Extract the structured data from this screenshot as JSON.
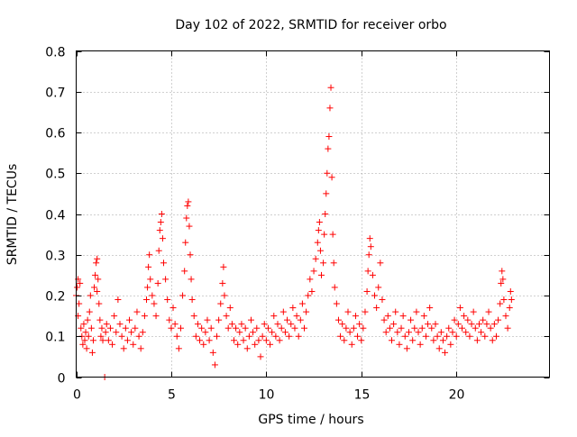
{
  "chart_data": {
    "type": "scatter",
    "title": "Day 102 of 2022, SRMTID for receiver orbo",
    "xlabel": "GPS time / hours",
    "ylabel": "SRMTID / TECUs",
    "xlim": [
      0,
      24.9
    ],
    "ylim": [
      0,
      0.8
    ],
    "x_ticks": [
      0,
      5,
      10,
      15,
      20
    ],
    "x_tick_labels": [
      "0",
      "5",
      "10",
      "15",
      "20"
    ],
    "y_ticks": [
      0,
      0.1,
      0.2,
      0.3,
      0.4,
      0.5,
      0.6,
      0.7,
      0.8
    ],
    "y_tick_labels": [
      "0",
      "0.1",
      "0.2",
      "0.3",
      "0.4",
      "0.5",
      "0.6",
      "0.7",
      "0.8"
    ],
    "grid": true,
    "marker": "+",
    "color": "#ff0000",
    "series": [
      {
        "name": "SRMTID",
        "points": [
          [
            0.0,
            0.2
          ],
          [
            0.05,
            0.22
          ],
          [
            0.1,
            0.24
          ],
          [
            0.1,
            0.15
          ],
          [
            0.15,
            0.18
          ],
          [
            0.2,
            0.23
          ],
          [
            0.25,
            0.12
          ],
          [
            0.3,
            0.1
          ],
          [
            0.35,
            0.08
          ],
          [
            0.4,
            0.13
          ],
          [
            0.45,
            0.09
          ],
          [
            0.5,
            0.11
          ],
          [
            0.55,
            0.07
          ],
          [
            0.6,
            0.14
          ],
          [
            0.65,
            0.1
          ],
          [
            0.7,
            0.16
          ],
          [
            0.75,
            0.2
          ],
          [
            0.8,
            0.12
          ],
          [
            0.85,
            0.06
          ],
          [
            0.9,
            0.09
          ],
          [
            0.95,
            0.22
          ],
          [
            1.0,
            0.25
          ],
          [
            1.05,
            0.28
          ],
          [
            1.1,
            0.29
          ],
          [
            1.1,
            0.21
          ],
          [
            1.15,
            0.24
          ],
          [
            1.2,
            0.18
          ],
          [
            1.25,
            0.14
          ],
          [
            1.3,
            0.1
          ],
          [
            1.35,
            0.12
          ],
          [
            1.4,
            0.09
          ],
          [
            1.5,
            0.0
          ],
          [
            1.55,
            0.11
          ],
          [
            1.6,
            0.13
          ],
          [
            1.7,
            0.09
          ],
          [
            1.8,
            0.12
          ],
          [
            1.9,
            0.08
          ],
          [
            2.0,
            0.15
          ],
          [
            2.1,
            0.11
          ],
          [
            2.2,
            0.19
          ],
          [
            2.3,
            0.13
          ],
          [
            2.4,
            0.1
          ],
          [
            2.5,
            0.07
          ],
          [
            2.6,
            0.12
          ],
          [
            2.7,
            0.09
          ],
          [
            2.8,
            0.14
          ],
          [
            2.9,
            0.11
          ],
          [
            3.0,
            0.08
          ],
          [
            3.1,
            0.12
          ],
          [
            3.2,
            0.16
          ],
          [
            3.3,
            0.1
          ],
          [
            3.4,
            0.07
          ],
          [
            3.5,
            0.11
          ],
          [
            3.6,
            0.15
          ],
          [
            3.7,
            0.19
          ],
          [
            3.75,
            0.22
          ],
          [
            3.8,
            0.27
          ],
          [
            3.85,
            0.3
          ],
          [
            3.9,
            0.24
          ],
          [
            4.0,
            0.2
          ],
          [
            4.1,
            0.18
          ],
          [
            4.2,
            0.15
          ],
          [
            4.3,
            0.23
          ],
          [
            4.35,
            0.31
          ],
          [
            4.4,
            0.36
          ],
          [
            4.45,
            0.38
          ],
          [
            4.5,
            0.4
          ],
          [
            4.55,
            0.34
          ],
          [
            4.6,
            0.28
          ],
          [
            4.7,
            0.24
          ],
          [
            4.8,
            0.19
          ],
          [
            4.9,
            0.14
          ],
          [
            5.0,
            0.12
          ],
          [
            5.1,
            0.17
          ],
          [
            5.2,
            0.13
          ],
          [
            5.3,
            0.1
          ],
          [
            5.4,
            0.07
          ],
          [
            5.5,
            0.12
          ],
          [
            5.6,
            0.2
          ],
          [
            5.7,
            0.26
          ],
          [
            5.75,
            0.33
          ],
          [
            5.8,
            0.39
          ],
          [
            5.85,
            0.42
          ],
          [
            5.9,
            0.43
          ],
          [
            5.95,
            0.37
          ],
          [
            6.0,
            0.3
          ],
          [
            6.05,
            0.24
          ],
          [
            6.1,
            0.19
          ],
          [
            6.2,
            0.15
          ],
          [
            6.3,
            0.1
          ],
          [
            6.4,
            0.13
          ],
          [
            6.5,
            0.09
          ],
          [
            6.6,
            0.12
          ],
          [
            6.7,
            0.08
          ],
          [
            6.8,
            0.11
          ],
          [
            6.9,
            0.14
          ],
          [
            7.0,
            0.09
          ],
          [
            7.1,
            0.12
          ],
          [
            7.2,
            0.06
          ],
          [
            7.3,
            0.03
          ],
          [
            7.4,
            0.1
          ],
          [
            7.5,
            0.14
          ],
          [
            7.6,
            0.18
          ],
          [
            7.7,
            0.23
          ],
          [
            7.75,
            0.27
          ],
          [
            7.8,
            0.2
          ],
          [
            7.9,
            0.15
          ],
          [
            8.0,
            0.12
          ],
          [
            8.1,
            0.17
          ],
          [
            8.2,
            0.13
          ],
          [
            8.3,
            0.09
          ],
          [
            8.4,
            0.12
          ],
          [
            8.5,
            0.08
          ],
          [
            8.6,
            0.11
          ],
          [
            8.7,
            0.13
          ],
          [
            8.8,
            0.09
          ],
          [
            8.9,
            0.12
          ],
          [
            9.0,
            0.07
          ],
          [
            9.1,
            0.1
          ],
          [
            9.2,
            0.14
          ],
          [
            9.3,
            0.11
          ],
          [
            9.4,
            0.08
          ],
          [
            9.5,
            0.12
          ],
          [
            9.6,
            0.09
          ],
          [
            9.7,
            0.05
          ],
          [
            9.8,
            0.1
          ],
          [
            9.9,
            0.13
          ],
          [
            10.0,
            0.09
          ],
          [
            10.1,
            0.12
          ],
          [
            10.2,
            0.08
          ],
          [
            10.3,
            0.11
          ],
          [
            10.4,
            0.15
          ],
          [
            10.5,
            0.1
          ],
          [
            10.6,
            0.13
          ],
          [
            10.7,
            0.09
          ],
          [
            10.8,
            0.12
          ],
          [
            10.9,
            0.16
          ],
          [
            11.0,
            0.11
          ],
          [
            11.1,
            0.14
          ],
          [
            11.2,
            0.1
          ],
          [
            11.3,
            0.13
          ],
          [
            11.4,
            0.17
          ],
          [
            11.5,
            0.12
          ],
          [
            11.6,
            0.15
          ],
          [
            11.7,
            0.1
          ],
          [
            11.8,
            0.14
          ],
          [
            11.9,
            0.18
          ],
          [
            12.0,
            0.12
          ],
          [
            12.1,
            0.16
          ],
          [
            12.2,
            0.2
          ],
          [
            12.3,
            0.24
          ],
          [
            12.4,
            0.21
          ],
          [
            12.5,
            0.26
          ],
          [
            12.6,
            0.29
          ],
          [
            12.7,
            0.33
          ],
          [
            12.75,
            0.36
          ],
          [
            12.8,
            0.38
          ],
          [
            12.85,
            0.31
          ],
          [
            12.9,
            0.25
          ],
          [
            13.0,
            0.28
          ],
          [
            13.05,
            0.35
          ],
          [
            13.1,
            0.4
          ],
          [
            13.15,
            0.45
          ],
          [
            13.2,
            0.5
          ],
          [
            13.25,
            0.56
          ],
          [
            13.3,
            0.59
          ],
          [
            13.35,
            0.66
          ],
          [
            13.4,
            0.71
          ],
          [
            13.45,
            0.49
          ],
          [
            13.5,
            0.35
          ],
          [
            13.55,
            0.28
          ],
          [
            13.6,
            0.22
          ],
          [
            13.7,
            0.18
          ],
          [
            13.8,
            0.14
          ],
          [
            13.9,
            0.1
          ],
          [
            14.0,
            0.13
          ],
          [
            14.1,
            0.09
          ],
          [
            14.2,
            0.12
          ],
          [
            14.3,
            0.16
          ],
          [
            14.4,
            0.11
          ],
          [
            14.5,
            0.08
          ],
          [
            14.6,
            0.12
          ],
          [
            14.7,
            0.15
          ],
          [
            14.8,
            0.1
          ],
          [
            14.9,
            0.13
          ],
          [
            15.0,
            0.09
          ],
          [
            15.1,
            0.12
          ],
          [
            15.2,
            0.16
          ],
          [
            15.3,
            0.21
          ],
          [
            15.35,
            0.26
          ],
          [
            15.4,
            0.3
          ],
          [
            15.45,
            0.34
          ],
          [
            15.5,
            0.32
          ],
          [
            15.6,
            0.25
          ],
          [
            15.7,
            0.2
          ],
          [
            15.8,
            0.17
          ],
          [
            15.9,
            0.22
          ],
          [
            16.0,
            0.28
          ],
          [
            16.1,
            0.19
          ],
          [
            16.2,
            0.14
          ],
          [
            16.3,
            0.11
          ],
          [
            16.4,
            0.15
          ],
          [
            16.5,
            0.12
          ],
          [
            16.6,
            0.09
          ],
          [
            16.7,
            0.13
          ],
          [
            16.8,
            0.16
          ],
          [
            16.9,
            0.11
          ],
          [
            17.0,
            0.08
          ],
          [
            17.1,
            0.12
          ],
          [
            17.2,
            0.15
          ],
          [
            17.3,
            0.1
          ],
          [
            17.4,
            0.07
          ],
          [
            17.5,
            0.11
          ],
          [
            17.6,
            0.14
          ],
          [
            17.7,
            0.09
          ],
          [
            17.8,
            0.12
          ],
          [
            17.9,
            0.16
          ],
          [
            18.0,
            0.11
          ],
          [
            18.1,
            0.08
          ],
          [
            18.2,
            0.12
          ],
          [
            18.3,
            0.15
          ],
          [
            18.4,
            0.1
          ],
          [
            18.5,
            0.13
          ],
          [
            18.6,
            0.17
          ],
          [
            18.7,
            0.12
          ],
          [
            18.8,
            0.09
          ],
          [
            18.9,
            0.13
          ],
          [
            19.0,
            0.1
          ],
          [
            19.1,
            0.07
          ],
          [
            19.2,
            0.11
          ],
          [
            19.3,
            0.09
          ],
          [
            19.4,
            0.06
          ],
          [
            19.5,
            0.1
          ],
          [
            19.6,
            0.12
          ],
          [
            19.7,
            0.08
          ],
          [
            19.8,
            0.11
          ],
          [
            19.9,
            0.14
          ],
          [
            20.0,
            0.1
          ],
          [
            20.1,
            0.13
          ],
          [
            20.2,
            0.17
          ],
          [
            20.3,
            0.12
          ],
          [
            20.4,
            0.15
          ],
          [
            20.5,
            0.11
          ],
          [
            20.6,
            0.14
          ],
          [
            20.7,
            0.1
          ],
          [
            20.8,
            0.13
          ],
          [
            20.9,
            0.16
          ],
          [
            21.0,
            0.12
          ],
          [
            21.1,
            0.09
          ],
          [
            21.2,
            0.13
          ],
          [
            21.3,
            0.11
          ],
          [
            21.4,
            0.14
          ],
          [
            21.5,
            0.1
          ],
          [
            21.6,
            0.13
          ],
          [
            21.7,
            0.16
          ],
          [
            21.8,
            0.12
          ],
          [
            21.9,
            0.09
          ],
          [
            22.0,
            0.13
          ],
          [
            22.1,
            0.1
          ],
          [
            22.2,
            0.14
          ],
          [
            22.3,
            0.18
          ],
          [
            22.35,
            0.23
          ],
          [
            22.4,
            0.26
          ],
          [
            22.45,
            0.24
          ],
          [
            22.5,
            0.19
          ],
          [
            22.6,
            0.15
          ],
          [
            22.7,
            0.12
          ],
          [
            22.8,
            0.17
          ],
          [
            22.85,
            0.21
          ],
          [
            22.9,
            0.19
          ]
        ]
      }
    ]
  }
}
